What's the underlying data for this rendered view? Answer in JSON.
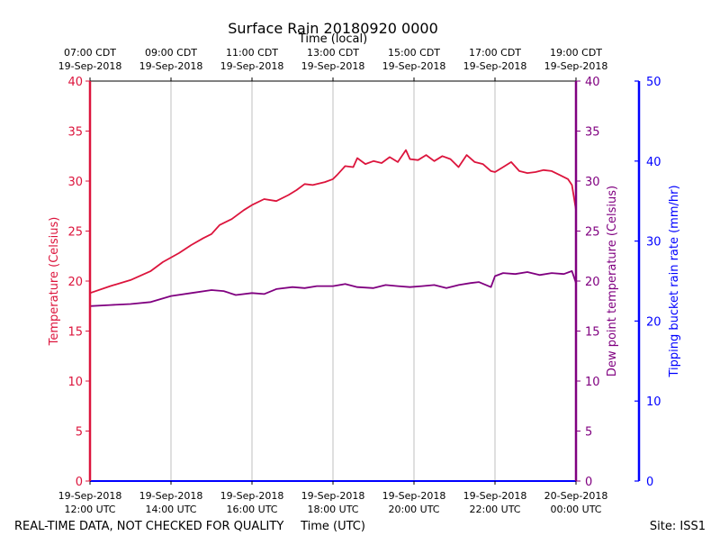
{
  "chart_data": {
    "type": "line",
    "title": "Surface Rain 20180920 0000",
    "top_axis_title": "Time (local)",
    "xlabel": "Time (UTC)",
    "ylabel_left": "Temperature (Celsius)",
    "ylabel_right": "Dew point temperature (Celsius)",
    "ylabel_far_right": "Tipping bucket rain rate (mm/hr)",
    "footer_left": "REAL-TIME DATA, NOT CHECKED FOR QUALITY",
    "footer_right": "Site: ISS1",
    "x_range_hours_utc": [
      12,
      24
    ],
    "ylim_temperature": [
      0,
      40
    ],
    "ylim_dewpoint": [
      0,
      40
    ],
    "ylim_rain": [
      0,
      50
    ],
    "temp_ticks": [
      "0",
      "5",
      "10",
      "15",
      "20",
      "25",
      "30",
      "35",
      "40"
    ],
    "dew_ticks": [
      "0",
      "5",
      "10",
      "15",
      "20",
      "25",
      "30",
      "35",
      "40"
    ],
    "rain_ticks": [
      "0",
      "10",
      "20",
      "30",
      "40",
      "50"
    ],
    "grid": "vertical",
    "colors": {
      "temperature": "#dc143c",
      "dewpoint": "#800080",
      "rain": "#0000ff",
      "grid": "#b0b0b0",
      "text": "#000000"
    },
    "bottom_ticks": [
      {
        "hour": 12,
        "date": "19-Sep-2018",
        "time": "12:00 UTC"
      },
      {
        "hour": 14,
        "date": "19-Sep-2018",
        "time": "14:00 UTC"
      },
      {
        "hour": 16,
        "date": "19-Sep-2018",
        "time": "16:00 UTC"
      },
      {
        "hour": 18,
        "date": "19-Sep-2018",
        "time": "18:00 UTC"
      },
      {
        "hour": 20,
        "date": "19-Sep-2018",
        "time": "20:00 UTC"
      },
      {
        "hour": 22,
        "date": "19-Sep-2018",
        "time": "22:00 UTC"
      },
      {
        "hour": 24,
        "date": "20-Sep-2018",
        "time": "00:00 UTC"
      }
    ],
    "top_ticks": [
      {
        "hour": 12,
        "time": "07:00 CDT",
        "date": "19-Sep-2018"
      },
      {
        "hour": 14,
        "time": "09:00 CDT",
        "date": "19-Sep-2018"
      },
      {
        "hour": 16,
        "time": "11:00 CDT",
        "date": "19-Sep-2018"
      },
      {
        "hour": 18,
        "time": "13:00 CDT",
        "date": "19-Sep-2018"
      },
      {
        "hour": 20,
        "time": "15:00 CDT",
        "date": "19-Sep-2018"
      },
      {
        "hour": 22,
        "time": "17:00 CDT",
        "date": "19-Sep-2018"
      },
      {
        "hour": 24,
        "time": "19:00 CDT",
        "date": "19-Sep-2018"
      }
    ],
    "series": [
      {
        "name": "Temperature",
        "axis": "temperature",
        "x": [
          12.0,
          12.5,
          13.0,
          13.5,
          13.8,
          14.2,
          14.5,
          14.8,
          15.0,
          15.2,
          15.5,
          15.8,
          16.0,
          16.3,
          16.6,
          16.9,
          17.1,
          17.3,
          17.5,
          17.8,
          18.0,
          18.1,
          18.3,
          18.5,
          18.6,
          18.8,
          19.0,
          19.2,
          19.4,
          19.6,
          19.8,
          19.9,
          20.1,
          20.3,
          20.5,
          20.7,
          20.9,
          21.1,
          21.3,
          21.5,
          21.7,
          21.9,
          22.0,
          22.2,
          22.4,
          22.6,
          22.8,
          23.0,
          23.2,
          23.4,
          23.6,
          23.8,
          23.9,
          24.0
        ],
        "values": [
          18.8,
          19.5,
          20.1,
          21.0,
          21.9,
          22.8,
          23.6,
          24.3,
          24.7,
          25.6,
          26.2,
          27.1,
          27.6,
          28.2,
          28.0,
          28.6,
          29.1,
          29.7,
          29.6,
          29.9,
          30.2,
          30.6,
          31.5,
          31.4,
          32.3,
          31.7,
          32.0,
          31.8,
          32.4,
          31.9,
          33.1,
          32.2,
          32.1,
          32.6,
          32.0,
          32.5,
          32.2,
          31.4,
          32.6,
          31.9,
          31.7,
          31.0,
          30.9,
          31.4,
          31.9,
          31.0,
          30.8,
          30.9,
          31.1,
          31.0,
          30.6,
          30.2,
          29.6,
          27.1
        ]
      },
      {
        "name": "Dew point",
        "axis": "dewpoint",
        "x": [
          12.0,
          12.5,
          13.0,
          13.5,
          14.0,
          14.5,
          15.0,
          15.3,
          15.6,
          16.0,
          16.3,
          16.6,
          17.0,
          17.3,
          17.6,
          18.0,
          18.3,
          18.6,
          19.0,
          19.3,
          19.6,
          19.9,
          20.2,
          20.5,
          20.8,
          21.1,
          21.4,
          21.6,
          21.9,
          22.0,
          22.2,
          22.5,
          22.8,
          23.1,
          23.4,
          23.7,
          23.9,
          24.0
        ],
        "values": [
          17.5,
          17.6,
          17.7,
          17.9,
          18.5,
          18.8,
          19.1,
          19.0,
          18.6,
          18.8,
          18.7,
          19.2,
          19.4,
          19.3,
          19.5,
          19.5,
          19.7,
          19.4,
          19.3,
          19.6,
          19.5,
          19.4,
          19.5,
          19.6,
          19.3,
          19.6,
          19.8,
          19.9,
          19.4,
          20.5,
          20.8,
          20.7,
          20.9,
          20.6,
          20.8,
          20.7,
          21.0,
          19.8
        ]
      },
      {
        "name": "Rain rate",
        "axis": "rain",
        "x": [
          12.0,
          24.0
        ],
        "values": [
          0,
          0
        ]
      }
    ]
  }
}
